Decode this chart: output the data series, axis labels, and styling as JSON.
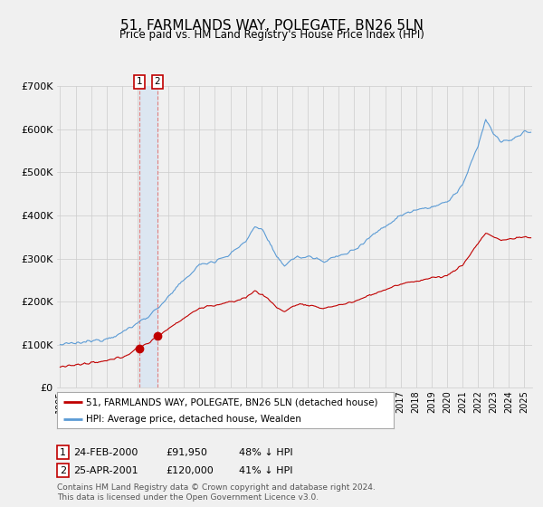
{
  "title": "51, FARMLANDS WAY, POLEGATE, BN26 5LN",
  "subtitle": "Price paid vs. HM Land Registry's House Price Index (HPI)",
  "legend_line1": "51, FARMLANDS WAY, POLEGATE, BN26 5LN (detached house)",
  "legend_line2": "HPI: Average price, detached house, Wealden",
  "transaction1_label": "1",
  "transaction1_date": "24-FEB-2000",
  "transaction1_price": 91950,
  "transaction1_hpi": "48% ↓ HPI",
  "transaction1_year": 2000.12,
  "transaction2_label": "2",
  "transaction2_date": "25-APR-2001",
  "transaction2_price": 120000,
  "transaction2_hpi": "41% ↓ HPI",
  "transaction2_year": 2001.29,
  "footer_line1": "Contains HM Land Registry data © Crown copyright and database right 2024.",
  "footer_line2": "This data is licensed under the Open Government Licence v3.0.",
  "hpi_color": "#5b9bd5",
  "price_color": "#c00000",
  "background_color": "#f0f0f0",
  "plot_bg_color": "#f0f0f0",
  "grid_color": "#cccccc",
  "highlight_color": "#dce6f1",
  "ylim": [
    0,
    700000
  ],
  "yticks": [
    0,
    100000,
    200000,
    300000,
    400000,
    500000,
    600000,
    700000
  ],
  "xlim_start": 1994.8,
  "xlim_end": 2025.5
}
